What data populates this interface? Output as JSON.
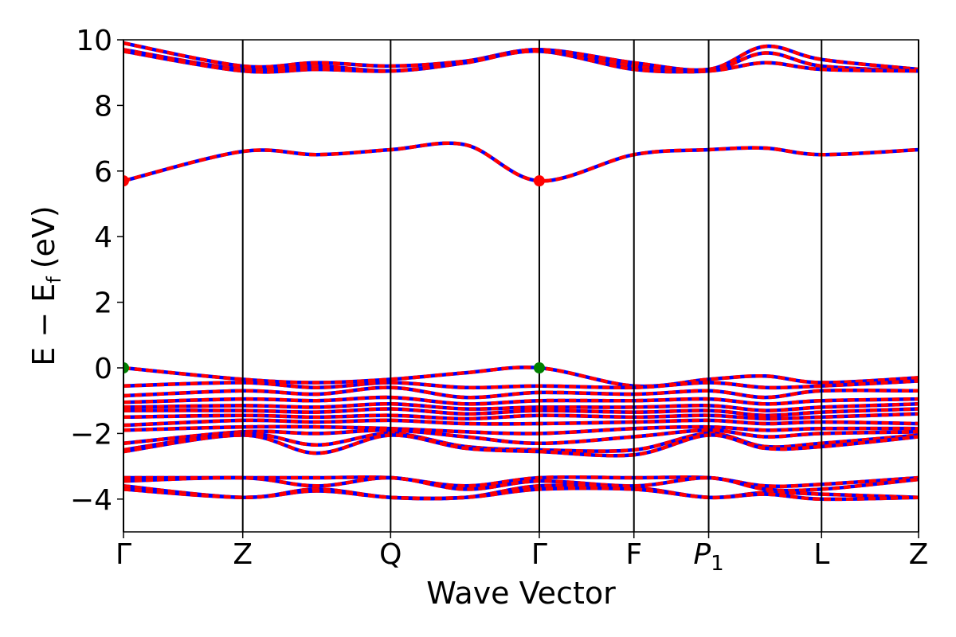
{
  "chart_data": {
    "type": "line",
    "xlabel": "Wave Vector",
    "ylabel": {
      "main": "E − E",
      "sub": "f",
      "unit": "(eV)"
    },
    "ylim": [
      -5,
      10
    ],
    "yticks": [
      -4,
      -2,
      0,
      2,
      4,
      6,
      8,
      10
    ],
    "ytick_labels": [
      "−4",
      "−2",
      "0",
      "2",
      "4",
      "6",
      "8",
      "10"
    ],
    "grid": false,
    "legend": "none",
    "kpath": [
      {
        "label": "Γ",
        "x": 0.0
      },
      {
        "label": "Z",
        "x": 0.15
      },
      {
        "label": "Q",
        "x": 0.336
      },
      {
        "label": "Γ",
        "x": 0.523
      },
      {
        "label": "F",
        "x": 0.642
      },
      {
        "label": "P",
        "sub": "1",
        "x": 0.736
      },
      {
        "label": "L",
        "x": 0.878
      },
      {
        "label": "Z",
        "x": 1.0
      }
    ],
    "colors": {
      "band_solid": "#0000ff",
      "band_dashed": "#ff0000",
      "cbm": "#ff0000",
      "vbm": "#008000",
      "kline": "#000000"
    },
    "series": [
      {
        "band": "c4",
        "values": [
          9.9,
          9.2,
          9.3,
          9.2,
          9.35,
          9.7,
          9.3,
          9.1,
          9.8,
          9.4,
          9.1
        ]
      },
      {
        "band": "c3",
        "values": [
          9.7,
          9.1,
          9.2,
          9.05,
          9.3,
          9.7,
          9.2,
          9.05,
          9.6,
          9.2,
          9.05
        ]
      },
      {
        "band": "c2",
        "values": [
          9.65,
          9.05,
          9.1,
          9.05,
          9.3,
          9.65,
          9.1,
          9.05,
          9.3,
          9.1,
          9.05
        ]
      },
      {
        "band": "c1",
        "values": [
          5.7,
          6.6,
          6.5,
          6.65,
          6.8,
          5.7,
          6.5,
          6.65,
          6.7,
          6.5,
          6.65
        ]
      },
      {
        "band": "v1",
        "values": [
          0.0,
          -0.35,
          -0.45,
          -0.35,
          -0.15,
          0.0,
          -0.55,
          -0.35,
          -0.25,
          -0.45,
          -0.3
        ]
      },
      {
        "band": "v2",
        "values": [
          -0.55,
          -0.45,
          -0.6,
          -0.45,
          -0.6,
          -0.55,
          -0.6,
          -0.45,
          -0.6,
          -0.55,
          -0.4
        ]
      },
      {
        "band": "v3",
        "values": [
          -0.85,
          -0.7,
          -0.8,
          -0.6,
          -0.9,
          -0.75,
          -0.8,
          -0.7,
          -0.9,
          -0.7,
          -0.7
        ]
      },
      {
        "band": "v4",
        "values": [
          -1.05,
          -0.95,
          -1.0,
          -0.9,
          -1.1,
          -1.0,
          -1.0,
          -0.95,
          -1.1,
          -1.0,
          -0.95
        ]
      },
      {
        "band": "v5",
        "values": [
          -1.2,
          -1.15,
          -1.2,
          -1.1,
          -1.25,
          -1.2,
          -1.2,
          -1.15,
          -1.3,
          -1.2,
          -1.1
        ]
      },
      {
        "band": "v6",
        "values": [
          -1.3,
          -1.3,
          -1.35,
          -1.25,
          -1.4,
          -1.3,
          -1.35,
          -1.3,
          -1.45,
          -1.35,
          -1.25
        ]
      },
      {
        "band": "v7",
        "values": [
          -1.5,
          -1.45,
          -1.5,
          -1.45,
          -1.55,
          -1.45,
          -1.5,
          -1.45,
          -1.55,
          -1.5,
          -1.4
        ]
      },
      {
        "band": "v8",
        "values": [
          -1.75,
          -1.6,
          -1.65,
          -1.6,
          -1.7,
          -1.7,
          -1.65,
          -1.6,
          -1.7,
          -1.65,
          -1.7
        ]
      },
      {
        "band": "v9",
        "values": [
          -1.9,
          -1.8,
          -1.8,
          -1.85,
          -1.95,
          -2.0,
          -1.85,
          -1.8,
          -1.9,
          -1.85,
          -1.85
        ]
      },
      {
        "band": "v10",
        "values": [
          -2.3,
          -1.95,
          -2.0,
          -1.9,
          -2.1,
          -2.3,
          -2.1,
          -1.9,
          -2.1,
          -2.0,
          -1.95
        ]
      },
      {
        "band": "v11",
        "values": [
          -2.5,
          -2.0,
          -2.35,
          -2.0,
          -2.4,
          -2.5,
          -2.5,
          -2.0,
          -2.4,
          -2.3,
          -2.05
        ]
      },
      {
        "band": "v12",
        "values": [
          -2.55,
          -2.05,
          -2.6,
          -2.05,
          -2.45,
          -2.55,
          -2.65,
          -2.05,
          -2.45,
          -2.4,
          -2.1
        ]
      },
      {
        "band": "d1",
        "values": [
          -3.35,
          -3.35,
          -3.35,
          -3.35,
          -3.6,
          -3.35,
          -3.35,
          -3.35,
          -3.6,
          -3.55,
          -3.35
        ]
      },
      {
        "band": "d2",
        "values": [
          -3.45,
          -3.35,
          -3.6,
          -3.35,
          -3.7,
          -3.45,
          -3.6,
          -3.35,
          -3.7,
          -3.7,
          -3.4
        ]
      },
      {
        "band": "d3",
        "values": [
          -3.6,
          -3.95,
          -3.7,
          -3.95,
          -3.95,
          -3.6,
          -3.65,
          -3.95,
          -3.8,
          -3.85,
          -3.95
        ]
      },
      {
        "band": "d4",
        "values": [
          -3.7,
          -3.95,
          -3.75,
          -3.95,
          -3.95,
          -3.7,
          -3.7,
          -3.95,
          -3.85,
          -4.0,
          -3.95
        ]
      }
    ],
    "sample_x": [
      0.0,
      0.15,
      0.243,
      0.336,
      0.43,
      0.523,
      0.642,
      0.736,
      0.807,
      0.878,
      1.0
    ],
    "extrema": [
      {
        "type": "cbm",
        "x": 0.0,
        "y": 5.7
      },
      {
        "type": "cbm",
        "x": 0.523,
        "y": 5.7
      },
      {
        "type": "vbm",
        "x": 0.0,
        "y": 0.0
      },
      {
        "type": "vbm",
        "x": 0.523,
        "y": 0.0
      }
    ]
  }
}
